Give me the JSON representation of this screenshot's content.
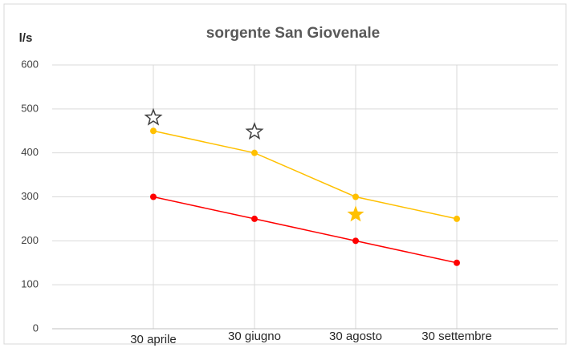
{
  "chart_data": {
    "type": "line",
    "title": "sorgente San Giovenale",
    "y_label": "l/s",
    "categories": [
      "30 aprile",
      "30 giugno",
      "30 agosto",
      "30 settembre"
    ],
    "series": [
      {
        "color": "#ffc000",
        "marker": "circle",
        "values": [
          450,
          400,
          300,
          250
        ]
      },
      {
        "color": "#ff0000",
        "marker": "circle",
        "values": [
          300,
          250,
          200,
          150
        ]
      },
      {
        "color": "#404040",
        "marker": "star-hollow",
        "values": [
          480,
          448,
          null,
          null
        ]
      },
      {
        "color": "#ffc000",
        "marker": "star",
        "values": [
          null,
          null,
          260,
          null
        ]
      }
    ],
    "ylim": [
      0,
      600
    ],
    "yticks": [
      0,
      100,
      200,
      300,
      400,
      500,
      600
    ],
    "grid": true
  }
}
